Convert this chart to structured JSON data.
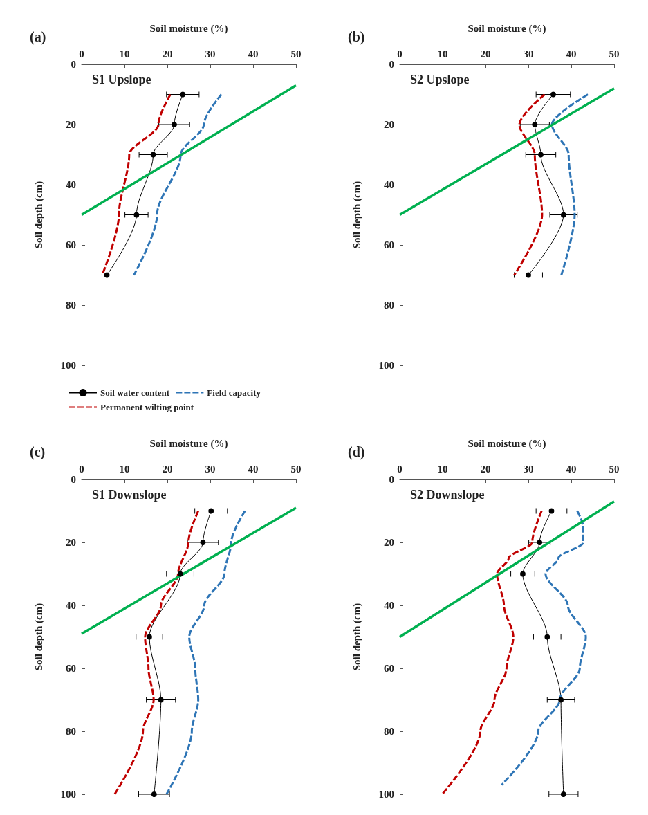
{
  "chart_data": [
    {
      "type": "line",
      "title": "(a)",
      "subtitle": "S1 Upslope",
      "xlabel": "Soil moisture (%)",
      "ylabel": "Soil depth (cm)",
      "xlim": [
        0,
        50
      ],
      "xticks": [
        0,
        10,
        20,
        30,
        40,
        50
      ],
      "ylim": [
        100,
        0
      ],
      "yticks": [
        0,
        20,
        40,
        60,
        80,
        100
      ],
      "legend": "bottom",
      "series": [
        {
          "name": "Soil water content",
          "color": "#000000",
          "marker": "circle",
          "line_style": "solid",
          "x": [
            23.6,
            21.6,
            16.7,
            12.8,
            5.9
          ],
          "values": [
            10,
            20,
            30,
            50,
            70
          ],
          "xerrors": [
            3.8,
            3.6,
            3.3,
            2.7,
            null
          ]
        },
        {
          "name": "Field capacity",
          "color": "#2e75b6",
          "marker": "none",
          "line_style": "dashed",
          "x": [
            32.6,
            28.5,
            23.1,
            17.6,
            12.2
          ],
          "values": [
            10,
            20,
            30,
            50,
            70
          ]
        },
        {
          "name": "Permanent wilting point",
          "color": "#c00000",
          "marker": "none",
          "line_style": "dashed",
          "x": [
            20.7,
            17.9,
            11.1,
            8.7,
            4.8
          ],
          "values": [
            10,
            20,
            30,
            50,
            70
          ]
        },
        {
          "color": "#00b050",
          "marker": "none",
          "line_style": "solid",
          "x": [
            0,
            50
          ],
          "values": [
            50,
            7
          ]
        }
      ]
    },
    {
      "type": "line",
      "title": "(b)",
      "subtitle": "S2 Upslope",
      "xlabel": "Soil moisture (%)",
      "ylabel": "Soil depth (cm)",
      "xlim": [
        0,
        50
      ],
      "xticks": [
        0,
        10,
        20,
        30,
        40,
        50
      ],
      "ylim": [
        100,
        0
      ],
      "yticks": [
        0,
        20,
        40,
        60,
        80,
        100
      ],
      "series": [
        {
          "color": "#000000",
          "marker": "circle",
          "line_style": "solid",
          "x": [
            35.8,
            31.5,
            32.9,
            38.2,
            30.0
          ],
          "values": [
            10,
            20,
            30,
            50,
            70
          ],
          "xerrors": [
            4.0,
            3.4,
            3.5,
            3.2,
            3.3
          ]
        },
        {
          "color": "#2e75b6",
          "marker": "none",
          "line_style": "dashed",
          "x": [
            43.9,
            35.5,
            39.4,
            40.8,
            37.7
          ],
          "values": [
            10,
            20,
            30,
            50,
            70
          ]
        },
        {
          "color": "#c00000",
          "marker": "none",
          "line_style": "dashed",
          "x": [
            33.8,
            27.9,
            31.5,
            33.2,
            26.7
          ],
          "values": [
            10,
            20,
            30,
            50,
            70
          ]
        },
        {
          "color": "#00b050",
          "marker": "none",
          "line_style": "solid",
          "x": [
            0,
            50
          ],
          "values": [
            50,
            8
          ]
        }
      ]
    },
    {
      "type": "line",
      "title": "(c)",
      "subtitle": "S1 Downslope",
      "xlabel": "Soil moisture (%)",
      "ylabel": "Soil depth (cm)",
      "xlim": [
        0,
        50
      ],
      "xticks": [
        0,
        10,
        20,
        30,
        40,
        50
      ],
      "ylim": [
        100,
        0
      ],
      "yticks": [
        0,
        20,
        40,
        60,
        80,
        100
      ],
      "series": [
        {
          "color": "#000000",
          "marker": "circle",
          "line_style": "solid",
          "x": [
            30.2,
            28.3,
            23.0,
            15.8,
            18.5,
            16.9
          ],
          "values": [
            10,
            20,
            30,
            50,
            70,
            100
          ],
          "xerrors": [
            3.8,
            3.6,
            3.2,
            3.1,
            3.4,
            3.6
          ]
        },
        {
          "color": "#2e75b6",
          "marker": "none",
          "line_style": "dashed",
          "x": [
            38.1,
            34.9,
            33.3,
            28.6,
            25.1,
            26.5,
            27.2,
            25.7,
            19.8
          ],
          "values": [
            10,
            20,
            30,
            40,
            50,
            60,
            70,
            80,
            100
          ]
        },
        {
          "color": "#c00000",
          "marker": "none",
          "line_style": "dashed",
          "x": [
            27.2,
            24.9,
            22.5,
            18.5,
            14.8,
            15.6,
            16.8,
            14.3,
            7.7
          ],
          "values": [
            10,
            20,
            30,
            40,
            50,
            60,
            70,
            80,
            100
          ]
        },
        {
          "color": "#00b050",
          "marker": "none",
          "line_style": "solid",
          "x": [
            0,
            50
          ],
          "values": [
            49,
            9
          ]
        }
      ]
    },
    {
      "type": "line",
      "title": "(d)",
      "subtitle": "S2 Downslope",
      "xlabel": "Soil moisture (%)",
      "ylabel": "Soil depth (cm)",
      "xlim": [
        0,
        50
      ],
      "xticks": [
        0,
        10,
        20,
        30,
        40,
        50
      ],
      "ylim": [
        100,
        0
      ],
      "yticks": [
        0,
        20,
        40,
        60,
        80,
        100
      ],
      "series": [
        {
          "color": "#000000",
          "marker": "circle",
          "line_style": "solid",
          "x": [
            35.4,
            32.6,
            28.7,
            34.4,
            37.6,
            38.2
          ],
          "values": [
            10,
            20,
            30,
            50,
            70,
            100
          ],
          "xerrors": [
            3.6,
            2.5,
            2.8,
            3.2,
            3.2,
            3.4
          ]
        },
        {
          "color": "#2e75b6",
          "marker": "none",
          "line_style": "dashed",
          "x": [
            41.4,
            42.8,
            42.8,
            37.0,
            34.0,
            39.2,
            43.4,
            42.0,
            37.3,
            32.3,
            23.8
          ],
          "values": [
            10,
            15,
            20,
            25,
            30,
            40,
            50,
            60,
            70,
            80,
            97
          ]
        },
        {
          "color": "#c00000",
          "marker": "none",
          "line_style": "dashed",
          "x": [
            33.1,
            30.9,
            25.4,
            22.7,
            24.3,
            26.5,
            24.9,
            22.1,
            18.8,
            9.9
          ],
          "values": [
            10,
            20,
            25,
            30,
            40,
            50,
            60,
            70,
            80,
            100
          ]
        },
        {
          "color": "#00b050",
          "marker": "none",
          "line_style": "solid",
          "x": [
            0,
            50
          ],
          "values": [
            50,
            7
          ]
        }
      ]
    }
  ]
}
